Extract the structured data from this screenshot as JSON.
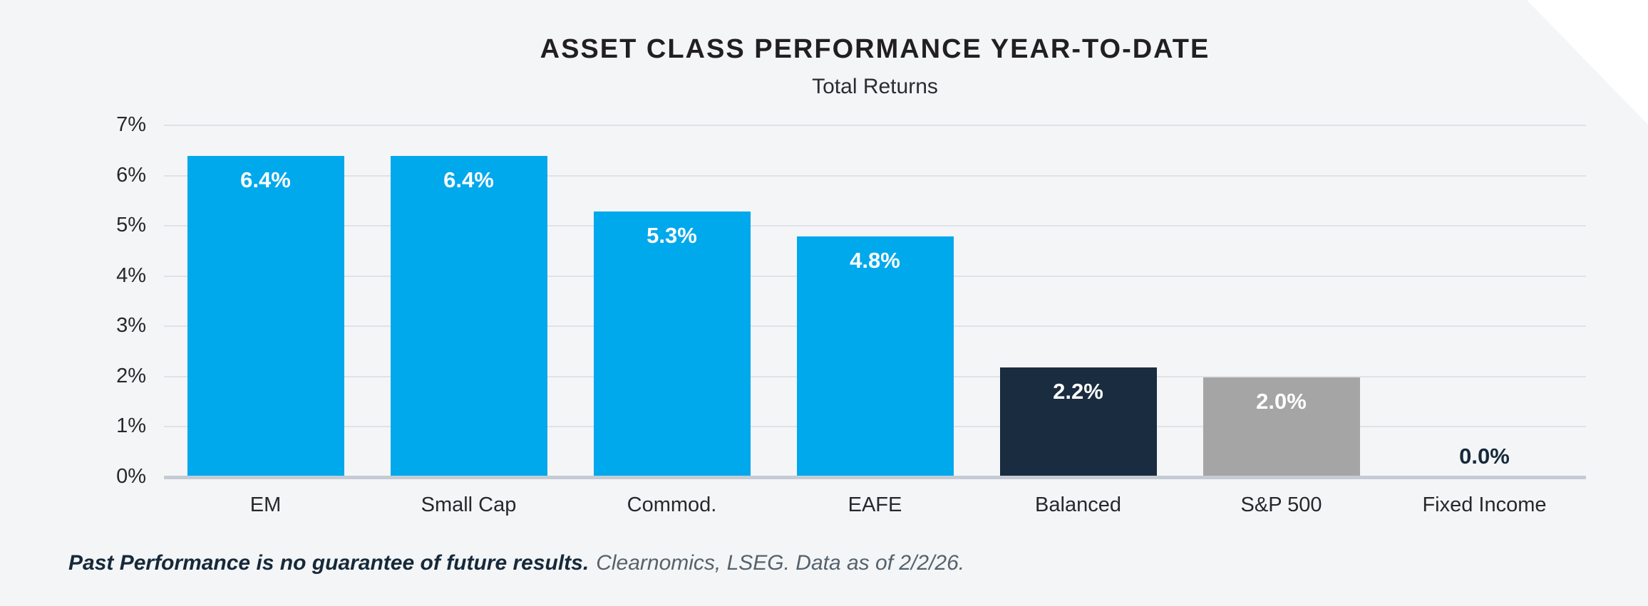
{
  "header": {
    "title": "ASSET CLASS PERFORMANCE YEAR-TO-DATE",
    "subtitle": "Total Returns"
  },
  "chart_data": {
    "type": "bar",
    "title": "ASSET CLASS PERFORMANCE YEAR-TO-DATE",
    "subtitle": "Total Returns",
    "categories": [
      "EM",
      "Small Cap",
      "Commod.",
      "EAFE",
      "Balanced",
      "S&P 500",
      "Fixed Income"
    ],
    "values": [
      6.4,
      6.4,
      5.3,
      4.8,
      2.2,
      2.0,
      0.0
    ],
    "value_labels": [
      "6.4%",
      "6.4%",
      "5.3%",
      "4.8%",
      "2.2%",
      "2.0%",
      "0.0%"
    ],
    "bar_colors": [
      "#00A8EC",
      "#00A8EC",
      "#00A8EC",
      "#00A8EC",
      "#1A2C3F",
      "#A5A5A5",
      "#00A8EC"
    ],
    "xlabel": "",
    "ylabel": "",
    "ylim": [
      0,
      7
    ],
    "yticks": [
      0,
      1,
      2,
      3,
      4,
      5,
      6,
      7
    ],
    "ytick_labels": [
      "0%",
      "1%",
      "2%",
      "3%",
      "4%",
      "5%",
      "6%",
      "7%"
    ],
    "grid": true,
    "legend": false
  },
  "footer": {
    "disclaimer_bold": "Past Performance is no guarantee of future results.",
    "source": "Clearnomics, LSEG. Data as of 2/2/26."
  },
  "colors": {
    "background": "#F4F5F6",
    "bar_blue": "#00A8EC",
    "bar_navy": "#1A2C3F",
    "bar_gray": "#A5A5A5",
    "gridline": "#DFE2E7",
    "axis_line": "#C5CBD5",
    "value_label_inside": "#FFFFFF",
    "value_label_outside": "#16293C"
  }
}
